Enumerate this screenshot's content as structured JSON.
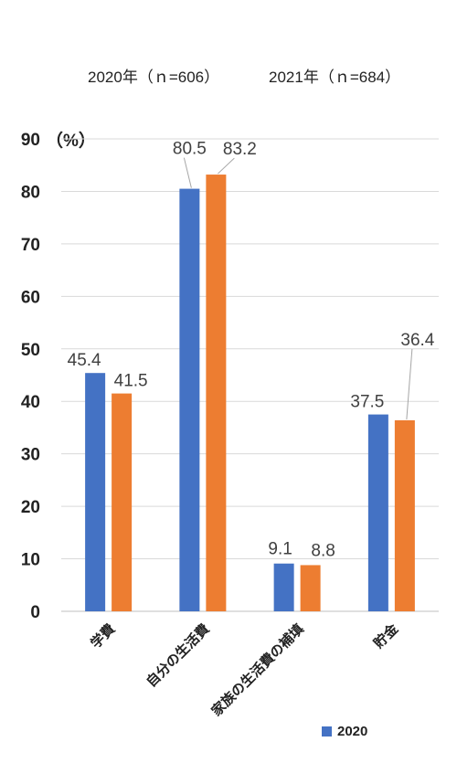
{
  "chart_data": {
    "type": "bar",
    "categories": [
      "学費",
      "自分の生活費",
      "家族の生活費の補填",
      "貯金"
    ],
    "series": [
      {
        "name": "2020年（ｎ=606）",
        "values": [
          45.4,
          80.5,
          9.1,
          37.5
        ],
        "labels": [
          "45.4",
          "80.5",
          "9.1",
          "37.5"
        ]
      },
      {
        "name": "2021年（ｎ=684）",
        "values": [
          41.5,
          83.2,
          8.8,
          36.4
        ],
        "labels": [
          "41.5",
          "83.2",
          "8.8",
          "36.4"
        ]
      }
    ],
    "ylim": [
      0,
      90
    ],
    "yticks": [
      0,
      10,
      20,
      30,
      40,
      50,
      60,
      70,
      80,
      90
    ],
    "unit_label": "（%）",
    "legend_bottom_label": "2020",
    "grid": true,
    "colors": [
      "#4472C4",
      "#ED7D31"
    ]
  }
}
